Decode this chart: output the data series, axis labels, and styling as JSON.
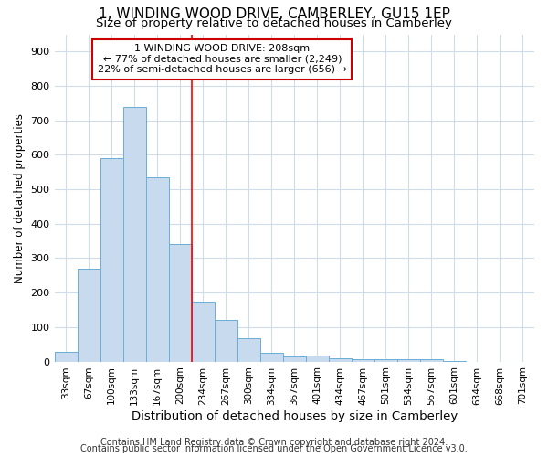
{
  "title": "1, WINDING WOOD DRIVE, CAMBERLEY, GU15 1EP",
  "subtitle": "Size of property relative to detached houses in Camberley",
  "xlabel": "Distribution of detached houses by size in Camberley",
  "ylabel": "Number of detached properties",
  "footnote1": "Contains HM Land Registry data © Crown copyright and database right 2024.",
  "footnote2": "Contains public sector information licensed under the Open Government Licence v3.0.",
  "bar_labels": [
    "33sqm",
    "67sqm",
    "100sqm",
    "133sqm",
    "167sqm",
    "200sqm",
    "234sqm",
    "267sqm",
    "300sqm",
    "334sqm",
    "367sqm",
    "401sqm",
    "434sqm",
    "467sqm",
    "501sqm",
    "534sqm",
    "567sqm",
    "601sqm",
    "634sqm",
    "668sqm",
    "701sqm"
  ],
  "bar_values": [
    27,
    270,
    590,
    740,
    535,
    340,
    175,
    120,
    67,
    25,
    15,
    18,
    10,
    8,
    8,
    6,
    7,
    2,
    0,
    0,
    0
  ],
  "bar_color": "#c8daed",
  "bar_edge_color": "#6aaed6",
  "highlight_line_color": "#ff0000",
  "annotation_text": "  1 WINDING WOOD DRIVE: 208sqm  \n← 77% of detached houses are smaller (2,249)\n22% of semi-detached houses are larger (656) →",
  "annotation_box_color": "#ffffff",
  "annotation_box_edge": "#cc0000",
  "ylim": [
    0,
    950
  ],
  "yticks": [
    0,
    100,
    200,
    300,
    400,
    500,
    600,
    700,
    800,
    900
  ],
  "background_color": "#ffffff",
  "plot_background": "#ffffff",
  "grid_color": "#d0dce8"
}
